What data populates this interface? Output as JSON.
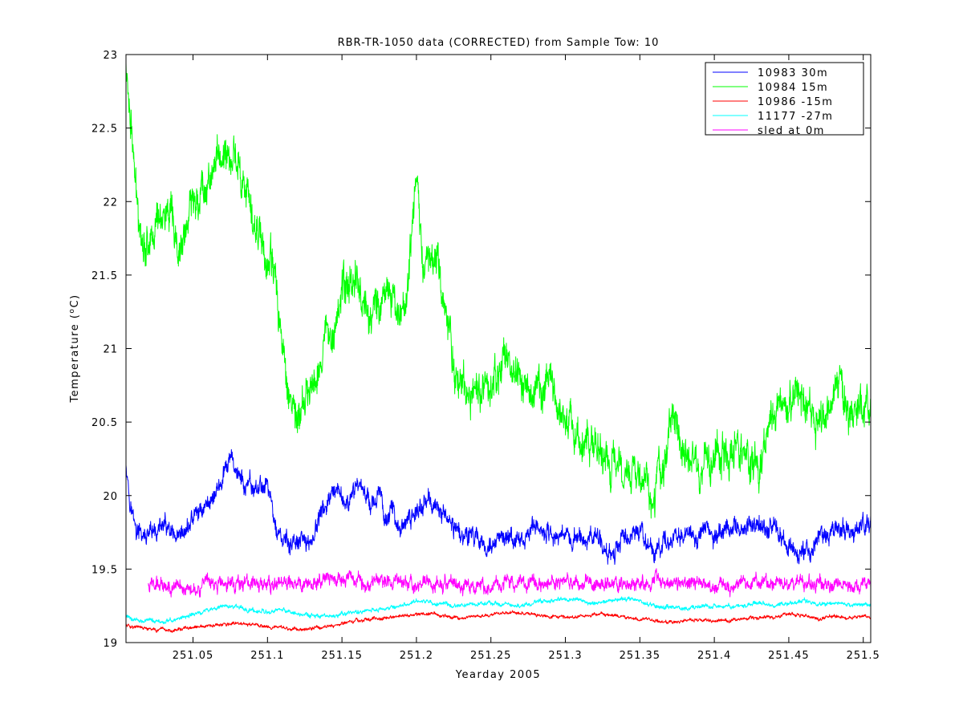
{
  "chart_data": {
    "type": "line",
    "title": "RBR-TR-1050 data (CORRECTED) from Sample Tow: 10",
    "xlabel": "Yearday 2005",
    "ylabel": "Temperature (°C)",
    "ylabel_parts": {
      "before": "Temperature (",
      "sup": "o",
      "after": "C)"
    },
    "xlim": [
      251.005,
      251.505
    ],
    "ylim": [
      19,
      23
    ],
    "xticks": [
      251.05,
      251.1,
      251.15,
      251.2,
      251.25,
      251.3,
      251.35,
      251.4,
      251.45,
      251.5
    ],
    "xtick_labels": [
      "251.05",
      "251.1",
      "251.15",
      "251.2",
      "251.25",
      "251.3",
      "251.35",
      "251.4",
      "251.45",
      "251.5"
    ],
    "yticks": [
      19,
      19.5,
      20,
      20.5,
      21,
      21.5,
      22,
      22.5,
      23
    ],
    "ytick_labels": [
      "19",
      "19.5",
      "20",
      "20.5",
      "21",
      "21.5",
      "22",
      "22.5",
      "23"
    ],
    "grid": false,
    "legend_position": "top-right",
    "series": [
      {
        "name": "10983 30m",
        "color": "#0000ff",
        "noise": 0.07,
        "x": [
          251.005,
          251.008,
          251.012,
          251.02,
          251.03,
          251.04,
          251.05,
          251.06,
          251.07,
          251.075,
          251.078,
          251.085,
          251.095,
          251.1,
          251.105,
          251.11,
          251.12,
          251.13,
          251.135,
          251.14,
          251.15,
          251.155,
          251.16,
          251.165,
          251.17,
          251.175,
          251.18,
          251.185,
          251.19,
          251.2,
          251.205,
          251.21,
          251.22,
          251.23,
          251.24,
          251.25,
          251.26,
          251.27,
          251.28,
          251.29,
          251.3,
          251.31,
          251.32,
          251.33,
          251.34,
          251.35,
          251.36,
          251.37,
          251.38,
          251.39,
          251.4,
          251.41,
          251.42,
          251.43,
          251.44,
          251.45,
          251.46,
          251.47,
          251.48,
          251.49,
          251.5,
          251.505
        ],
        "y": [
          20.25,
          19.95,
          19.75,
          19.7,
          19.8,
          19.65,
          19.85,
          19.95,
          20.1,
          20.25,
          20.2,
          20.05,
          20.05,
          20.1,
          19.8,
          19.68,
          19.66,
          19.7,
          19.85,
          19.95,
          20.0,
          19.9,
          20.1,
          20.05,
          19.95,
          20.0,
          19.85,
          19.9,
          19.75,
          19.9,
          19.95,
          19.95,
          19.85,
          19.75,
          19.72,
          19.65,
          19.7,
          19.68,
          19.8,
          19.72,
          19.75,
          19.7,
          19.72,
          19.62,
          19.7,
          19.75,
          19.6,
          19.72,
          19.75,
          19.72,
          19.72,
          19.8,
          19.78,
          19.8,
          19.78,
          19.62,
          19.6,
          19.7,
          19.78,
          19.75,
          19.8,
          19.82
        ]
      },
      {
        "name": "10984 15m",
        "color": "#00ff00",
        "noise": 0.14,
        "x": [
          251.005,
          251.008,
          251.012,
          251.018,
          251.025,
          251.03,
          251.035,
          251.04,
          251.05,
          251.06,
          251.065,
          251.07,
          251.075,
          251.078,
          251.085,
          251.09,
          251.095,
          251.1,
          251.105,
          251.11,
          251.115,
          251.12,
          251.13,
          251.14,
          251.15,
          251.155,
          251.16,
          251.165,
          251.17,
          251.18,
          251.185,
          251.19,
          251.195,
          251.2,
          251.205,
          251.21,
          251.215,
          251.22,
          251.225,
          251.23,
          251.24,
          251.25,
          251.26,
          251.27,
          251.28,
          251.29,
          251.3,
          251.31,
          251.32,
          251.33,
          251.34,
          251.35,
          251.36,
          251.365,
          251.37,
          251.375,
          251.38,
          251.39,
          251.4,
          251.41,
          251.42,
          251.43,
          251.44,
          251.45,
          251.46,
          251.47,
          251.48,
          251.485,
          251.49,
          251.5,
          251.505
        ],
        "y": [
          22.9,
          22.6,
          22.0,
          21.7,
          21.85,
          21.95,
          21.85,
          21.6,
          22.0,
          22.15,
          22.25,
          22.35,
          22.25,
          22.35,
          22.1,
          21.8,
          21.85,
          21.55,
          21.5,
          21.0,
          20.7,
          20.5,
          20.75,
          21.1,
          21.35,
          21.45,
          21.5,
          21.3,
          21.2,
          21.45,
          21.3,
          21.2,
          21.5,
          22.1,
          21.6,
          21.7,
          21.55,
          21.25,
          20.9,
          20.8,
          20.7,
          20.75,
          20.9,
          20.85,
          20.65,
          20.75,
          20.45,
          20.35,
          20.3,
          20.2,
          20.25,
          20.15,
          20.05,
          20.15,
          20.45,
          20.5,
          20.3,
          20.2,
          20.25,
          20.3,
          20.3,
          20.2,
          20.55,
          20.7,
          20.6,
          20.5,
          20.7,
          20.75,
          20.5,
          20.65,
          20.6
        ]
      },
      {
        "name": "10986 -15m",
        "color": "#ff0000",
        "noise": 0.012,
        "x": [
          251.005,
          251.01,
          251.02,
          251.03,
          251.04,
          251.05,
          251.06,
          251.07,
          251.08,
          251.09,
          251.1,
          251.11,
          251.12,
          251.13,
          251.14,
          251.15,
          251.16,
          251.17,
          251.18,
          251.19,
          251.2,
          251.21,
          251.22,
          251.23,
          251.24,
          251.25,
          251.26,
          251.27,
          251.28,
          251.29,
          251.3,
          251.31,
          251.32,
          251.33,
          251.34,
          251.35,
          251.36,
          251.37,
          251.38,
          251.39,
          251.4,
          251.41,
          251.42,
          251.43,
          251.44,
          251.45,
          251.46,
          251.47,
          251.48,
          251.49,
          251.5,
          251.505
        ],
        "y": [
          19.12,
          19.11,
          19.09,
          19.08,
          19.09,
          19.1,
          19.11,
          19.12,
          19.13,
          19.12,
          19.11,
          19.1,
          19.09,
          19.1,
          19.11,
          19.13,
          19.15,
          19.16,
          19.17,
          19.18,
          19.19,
          19.2,
          19.18,
          19.17,
          19.18,
          19.19,
          19.2,
          19.2,
          19.19,
          19.18,
          19.17,
          19.18,
          19.19,
          19.19,
          19.17,
          19.16,
          19.15,
          19.14,
          19.15,
          19.16,
          19.15,
          19.15,
          19.16,
          19.17,
          19.17,
          19.2,
          19.18,
          19.16,
          19.18,
          19.17,
          19.18,
          19.17
        ]
      },
      {
        "name": "11177 -27m",
        "color": "#00ffff",
        "noise": 0.015,
        "x": [
          251.005,
          251.01,
          251.02,
          251.03,
          251.04,
          251.05,
          251.06,
          251.07,
          251.08,
          251.09,
          251.1,
          251.11,
          251.12,
          251.13,
          251.14,
          251.15,
          251.16,
          251.17,
          251.18,
          251.19,
          251.2,
          251.21,
          251.22,
          251.23,
          251.24,
          251.25,
          251.26,
          251.27,
          251.28,
          251.29,
          251.3,
          251.31,
          251.32,
          251.33,
          251.34,
          251.35,
          251.36,
          251.37,
          251.38,
          251.39,
          251.4,
          251.41,
          251.42,
          251.43,
          251.44,
          251.45,
          251.46,
          251.47,
          251.48,
          251.49,
          251.5,
          251.505
        ],
        "y": [
          19.18,
          19.16,
          19.15,
          19.14,
          19.16,
          19.19,
          19.22,
          19.25,
          19.24,
          19.22,
          19.2,
          19.22,
          19.2,
          19.18,
          19.17,
          19.19,
          19.21,
          19.22,
          19.23,
          19.25,
          19.28,
          19.27,
          19.26,
          19.25,
          19.26,
          19.27,
          19.26,
          19.25,
          19.27,
          19.28,
          19.3,
          19.29,
          19.27,
          19.28,
          19.3,
          19.28,
          19.25,
          19.24,
          19.23,
          19.24,
          19.25,
          19.25,
          19.26,
          19.27,
          19.25,
          19.27,
          19.28,
          19.26,
          19.27,
          19.26,
          19.26,
          19.25
        ]
      },
      {
        "name": "sled at 0m",
        "color": "#ff00ff",
        "noise": 0.05,
        "x": [
          251.02,
          251.05,
          251.08,
          251.1,
          251.12,
          251.14,
          251.15,
          251.16,
          251.17,
          251.2,
          251.25,
          251.3,
          251.35,
          251.37,
          251.4,
          251.45,
          251.5,
          251.505
        ],
        "y": [
          19.4,
          19.38,
          19.41,
          19.39,
          19.4,
          19.42,
          19.43,
          19.42,
          19.41,
          19.41,
          19.39,
          19.41,
          19.4,
          19.42,
          19.4,
          19.4,
          19.4,
          19.4
        ]
      }
    ]
  }
}
